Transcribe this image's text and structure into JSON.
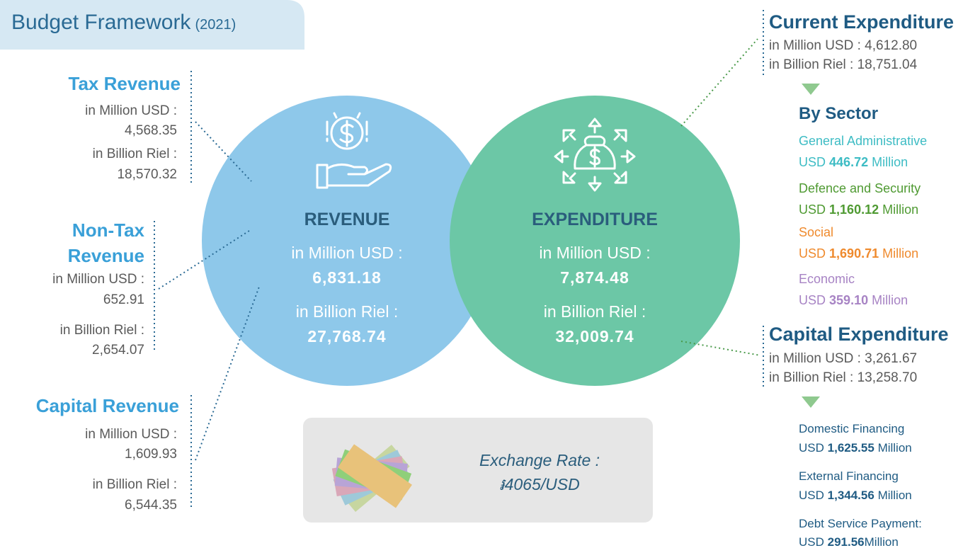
{
  "header": {
    "title": "Budget Framework",
    "year": "(2021)"
  },
  "revenue_sources": [
    {
      "title": "Tax Revenue",
      "usd_label": "in Million USD :",
      "usd": "4,568.35",
      "riel_label": "in Billion Riel :",
      "riel": "18,570.32"
    },
    {
      "title": [
        "Non-Tax",
        "Revenue"
      ],
      "usd_label": "in Million USD :",
      "usd": "652.91",
      "riel_label": "in Billion Riel :",
      "riel": "2,654.07"
    },
    {
      "title": "Capital Revenue",
      "usd_label": "in Million USD :",
      "usd": "1,609.93",
      "riel_label": "in Billion Riel :",
      "riel": "6,544.35"
    }
  ],
  "revenue": {
    "title": "REVENUE",
    "usd_label": "in Million USD :",
    "usd": "6,831.18",
    "riel_label": "in Billion Riel :",
    "riel": "27,768.74"
  },
  "expenditure": {
    "title": "EXPENDITURE",
    "usd_label": "in Million USD :",
    "usd": "7,874.48",
    "riel_label": "in Billion Riel :",
    "riel": "32,009.74"
  },
  "current_expenditure": {
    "title": "Current Expenditure",
    "usd": "in Million USD : 4,612.80",
    "riel": "in Billion Riel : 18,751.04",
    "by_sector": "By Sector",
    "sectors": [
      {
        "name": "General Administrative",
        "prefix": "USD",
        "amount": "446.72",
        "suffix": "Million"
      },
      {
        "name": "Defence and Security",
        "prefix": "USD",
        "amount": "1,160.12",
        "suffix": "Million"
      },
      {
        "name": "Social",
        "prefix": "USD",
        "amount": "1,690.71",
        "suffix": "Million"
      },
      {
        "name": "Economic",
        "prefix": "USD",
        "amount": "359.10",
        "suffix": "Million"
      }
    ]
  },
  "capital_expenditure": {
    "title": "Capital Expenditure",
    "usd": "in Million USD : 3,261.67",
    "riel": "in Billion Riel : 13,258.70",
    "items": [
      {
        "name": "Domestic Financing",
        "prefix": "USD",
        "amount": "1,625.55",
        "suffix": "Million"
      },
      {
        "name": "External Financing",
        "prefix": "USD",
        "amount": "1,344.56",
        "suffix": "Million"
      },
      {
        "name": "Debt Service Payment:",
        "prefix": "USD",
        "amount": "291.56",
        "suffix": "Million"
      }
    ]
  },
  "exchange_rate": {
    "label": "Exchange Rate :",
    "value": "៛4065/USD"
  }
}
